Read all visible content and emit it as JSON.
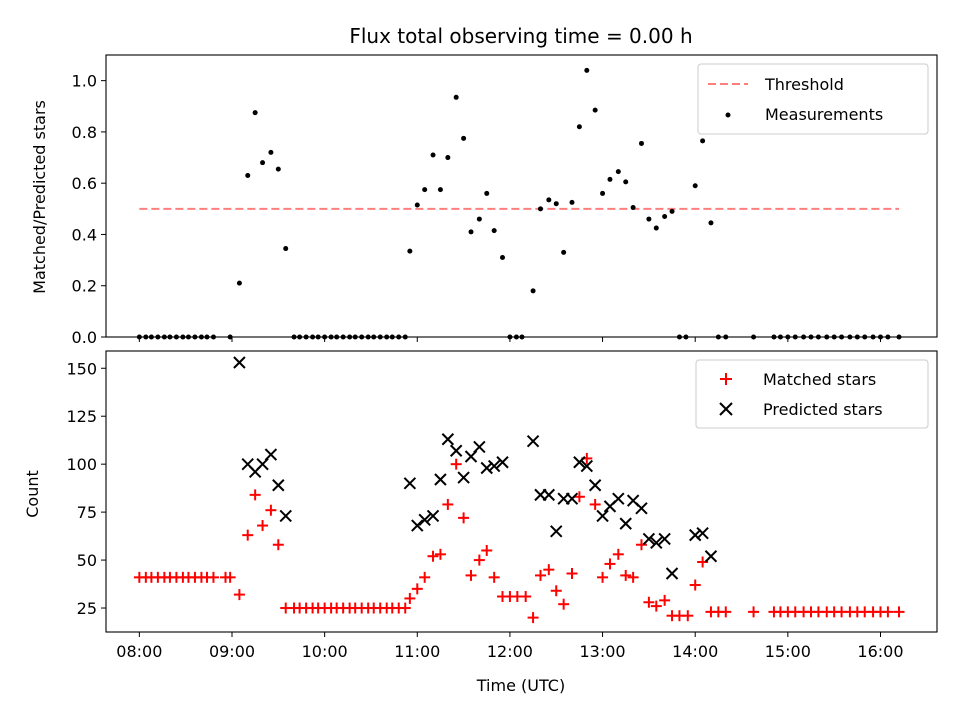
{
  "chart_data": [
    {
      "type": "scatter",
      "title": "Flux total observing time = 0.00 h",
      "xlabel": "",
      "ylabel": "Matched/Predicted stars",
      "ylim": [
        0,
        1.1
      ],
      "yticks": [
        0.0,
        0.2,
        0.4,
        0.6,
        0.8,
        1.0
      ],
      "ytick_labels": [
        "0.0",
        "0.2",
        "0.4",
        "0.6",
        "0.8",
        "1.0"
      ],
      "xlim": [
        7.64,
        16.61
      ],
      "xticks": [
        8,
        9,
        10,
        11,
        12,
        13,
        14,
        15,
        16
      ],
      "legend_position": "upper right",
      "threshold": {
        "name": "Threshold",
        "value": 0.5,
        "x_start": 8.0,
        "x_end": 16.2,
        "color": "#ff7f7f"
      },
      "series": [
        {
          "name": "Measurements",
          "color": "#000000",
          "points": [
            [
              8.0,
              0
            ],
            [
              8.07,
              0
            ],
            [
              8.13,
              0
            ],
            [
              8.2,
              0
            ],
            [
              8.27,
              0
            ],
            [
              8.33,
              0
            ],
            [
              8.4,
              0
            ],
            [
              8.47,
              0
            ],
            [
              8.53,
              0
            ],
            [
              8.6,
              0
            ],
            [
              8.67,
              0
            ],
            [
              8.73,
              0
            ],
            [
              8.8,
              0
            ],
            [
              8.98,
              0
            ],
            [
              9.08,
              0.21
            ],
            [
              9.17,
              0.63
            ],
            [
              9.25,
              0.875
            ],
            [
              9.33,
              0.68
            ],
            [
              9.42,
              0.72
            ],
            [
              9.5,
              0.655
            ],
            [
              9.58,
              0.345
            ],
            [
              9.67,
              0
            ],
            [
              9.73,
              0
            ],
            [
              9.8,
              0
            ],
            [
              9.87,
              0
            ],
            [
              9.93,
              0
            ],
            [
              10.0,
              0
            ],
            [
              10.07,
              0
            ],
            [
              10.13,
              0
            ],
            [
              10.2,
              0
            ],
            [
              10.27,
              0
            ],
            [
              10.33,
              0
            ],
            [
              10.4,
              0
            ],
            [
              10.47,
              0
            ],
            [
              10.53,
              0
            ],
            [
              10.6,
              0
            ],
            [
              10.67,
              0
            ],
            [
              10.73,
              0
            ],
            [
              10.8,
              0
            ],
            [
              10.87,
              0
            ],
            [
              10.92,
              0.335
            ],
            [
              11.0,
              0.515
            ],
            [
              11.08,
              0.575
            ],
            [
              11.17,
              0.71
            ],
            [
              11.25,
              0.575
            ],
            [
              11.33,
              0.7
            ],
            [
              11.42,
              0.935
            ],
            [
              11.5,
              0.775
            ],
            [
              11.58,
              0.41
            ],
            [
              11.67,
              0.46
            ],
            [
              11.75,
              0.56
            ],
            [
              11.83,
              0.415
            ],
            [
              11.92,
              0.31
            ],
            [
              12.0,
              0
            ],
            [
              12.07,
              0
            ],
            [
              12.13,
              0
            ],
            [
              12.25,
              0.18
            ],
            [
              12.33,
              0.5
            ],
            [
              12.42,
              0.535
            ],
            [
              12.5,
              0.52
            ],
            [
              12.58,
              0.33
            ],
            [
              12.67,
              0.525
            ],
            [
              12.75,
              0.82
            ],
            [
              12.83,
              1.04
            ],
            [
              12.92,
              0.885
            ],
            [
              13.0,
              0.56
            ],
            [
              13.08,
              0.615
            ],
            [
              13.17,
              0.645
            ],
            [
              13.25,
              0.605
            ],
            [
              13.33,
              0.505
            ],
            [
              13.42,
              0.755
            ],
            [
              13.5,
              0.46
            ],
            [
              13.58,
              0.425
            ],
            [
              13.67,
              0.47
            ],
            [
              13.75,
              0.49
            ],
            [
              13.83,
              0
            ],
            [
              13.9,
              0
            ],
            [
              14.0,
              0.59
            ],
            [
              14.08,
              0.765
            ],
            [
              14.17,
              0.445
            ],
            [
              14.25,
              0
            ],
            [
              14.33,
              0
            ],
            [
              14.63,
              0
            ],
            [
              14.85,
              0
            ],
            [
              14.92,
              0
            ],
            [
              15.0,
              0
            ],
            [
              15.08,
              0
            ],
            [
              15.17,
              0
            ],
            [
              15.25,
              0
            ],
            [
              15.33,
              0
            ],
            [
              15.42,
              0
            ],
            [
              15.5,
              0
            ],
            [
              15.58,
              0
            ],
            [
              15.67,
              0
            ],
            [
              15.75,
              0
            ],
            [
              15.83,
              0
            ],
            [
              15.92,
              0
            ],
            [
              16.0,
              0
            ],
            [
              16.08,
              0
            ],
            [
              16.2,
              0
            ]
          ]
        }
      ]
    },
    {
      "type": "scatter",
      "title": "",
      "xlabel": "Time (UTC)",
      "ylabel": "Count",
      "ylim": [
        12.5,
        159
      ],
      "yticks": [
        25,
        50,
        75,
        100,
        125,
        150
      ],
      "ytick_labels": [
        "25",
        "50",
        "75",
        "100",
        "125",
        "150"
      ],
      "xlim": [
        7.64,
        16.61
      ],
      "xticks": [
        8,
        9,
        10,
        11,
        12,
        13,
        14,
        15,
        16
      ],
      "xtick_labels": [
        "08:00",
        "09:00",
        "10:00",
        "11:00",
        "12:00",
        "13:00",
        "14:00",
        "15:00",
        "16:00"
      ],
      "legend_position": "upper right",
      "series": [
        {
          "name": "Matched stars",
          "marker": "plus",
          "color": "#ff0000",
          "points": [
            [
              8.0,
              41
            ],
            [
              8.07,
              41
            ],
            [
              8.13,
              41
            ],
            [
              8.2,
              41
            ],
            [
              8.27,
              41
            ],
            [
              8.33,
              41
            ],
            [
              8.4,
              41
            ],
            [
              8.47,
              41
            ],
            [
              8.53,
              41
            ],
            [
              8.6,
              41
            ],
            [
              8.67,
              41
            ],
            [
              8.73,
              41
            ],
            [
              8.8,
              41
            ],
            [
              8.93,
              41
            ],
            [
              8.98,
              41
            ],
            [
              9.08,
              32
            ],
            [
              9.17,
              63
            ],
            [
              9.25,
              84
            ],
            [
              9.33,
              68
            ],
            [
              9.42,
              76
            ],
            [
              9.5,
              58
            ],
            [
              9.58,
              25
            ],
            [
              9.67,
              25
            ],
            [
              9.73,
              25
            ],
            [
              9.8,
              25
            ],
            [
              9.87,
              25
            ],
            [
              9.93,
              25
            ],
            [
              10.0,
              25
            ],
            [
              10.07,
              25
            ],
            [
              10.13,
              25
            ],
            [
              10.2,
              25
            ],
            [
              10.27,
              25
            ],
            [
              10.33,
              25
            ],
            [
              10.4,
              25
            ],
            [
              10.47,
              25
            ],
            [
              10.53,
              25
            ],
            [
              10.6,
              25
            ],
            [
              10.67,
              25
            ],
            [
              10.73,
              25
            ],
            [
              10.8,
              25
            ],
            [
              10.87,
              25
            ],
            [
              10.92,
              30
            ],
            [
              11.0,
              35
            ],
            [
              11.08,
              41
            ],
            [
              11.17,
              52
            ],
            [
              11.25,
              53
            ],
            [
              11.33,
              79
            ],
            [
              11.42,
              100
            ],
            [
              11.5,
              72
            ],
            [
              11.58,
              42
            ],
            [
              11.67,
              50
            ],
            [
              11.75,
              55
            ],
            [
              11.83,
              41
            ],
            [
              11.92,
              31
            ],
            [
              12.0,
              31
            ],
            [
              12.08,
              31
            ],
            [
              12.17,
              31
            ],
            [
              12.25,
              20
            ],
            [
              12.33,
              42
            ],
            [
              12.42,
              45
            ],
            [
              12.5,
              34
            ],
            [
              12.58,
              27
            ],
            [
              12.67,
              43
            ],
            [
              12.75,
              83
            ],
            [
              12.83,
              103
            ],
            [
              12.92,
              79
            ],
            [
              13.0,
              41
            ],
            [
              13.08,
              48
            ],
            [
              13.17,
              53
            ],
            [
              13.25,
              42
            ],
            [
              13.33,
              41
            ],
            [
              13.42,
              58
            ],
            [
              13.5,
              28
            ],
            [
              13.58,
              26
            ],
            [
              13.67,
              29
            ],
            [
              13.75,
              21
            ],
            [
              13.83,
              21
            ],
            [
              13.92,
              21
            ],
            [
              14.0,
              37
            ],
            [
              14.08,
              49
            ],
            [
              14.17,
              23
            ],
            [
              14.25,
              23
            ],
            [
              14.33,
              23
            ],
            [
              14.63,
              23
            ],
            [
              14.85,
              23
            ],
            [
              14.92,
              23
            ],
            [
              15.0,
              23
            ],
            [
              15.08,
              23
            ],
            [
              15.17,
              23
            ],
            [
              15.25,
              23
            ],
            [
              15.33,
              23
            ],
            [
              15.42,
              23
            ],
            [
              15.5,
              23
            ],
            [
              15.58,
              23
            ],
            [
              15.67,
              23
            ],
            [
              15.75,
              23
            ],
            [
              15.83,
              23
            ],
            [
              15.92,
              23
            ],
            [
              16.0,
              23
            ],
            [
              16.08,
              23
            ],
            [
              16.2,
              23
            ]
          ]
        },
        {
          "name": "Predicted stars",
          "marker": "x",
          "color": "#000000",
          "points": [
            [
              9.08,
              153
            ],
            [
              9.17,
              100
            ],
            [
              9.25,
              96
            ],
            [
              9.33,
              100
            ],
            [
              9.42,
              105
            ],
            [
              9.5,
              89
            ],
            [
              9.58,
              73
            ],
            [
              10.92,
              90
            ],
            [
              11.0,
              68
            ],
            [
              11.08,
              71
            ],
            [
              11.17,
              73
            ],
            [
              11.25,
              92
            ],
            [
              11.33,
              113
            ],
            [
              11.42,
              107
            ],
            [
              11.5,
              93
            ],
            [
              11.58,
              104
            ],
            [
              11.67,
              109
            ],
            [
              11.75,
              98
            ],
            [
              11.83,
              99
            ],
            [
              11.92,
              101
            ],
            [
              12.25,
              112
            ],
            [
              12.33,
              84
            ],
            [
              12.42,
              84
            ],
            [
              12.5,
              65
            ],
            [
              12.58,
              82
            ],
            [
              12.67,
              82
            ],
            [
              12.75,
              101
            ],
            [
              12.83,
              99
            ],
            [
              12.92,
              89
            ],
            [
              13.0,
              73
            ],
            [
              13.08,
              78
            ],
            [
              13.17,
              82
            ],
            [
              13.25,
              69
            ],
            [
              13.33,
              81
            ],
            [
              13.42,
              77
            ],
            [
              13.5,
              61
            ],
            [
              13.58,
              59
            ],
            [
              13.67,
              61
            ],
            [
              13.75,
              43
            ],
            [
              14.0,
              63
            ],
            [
              14.08,
              64
            ],
            [
              14.17,
              52
            ]
          ]
        }
      ]
    }
  ]
}
